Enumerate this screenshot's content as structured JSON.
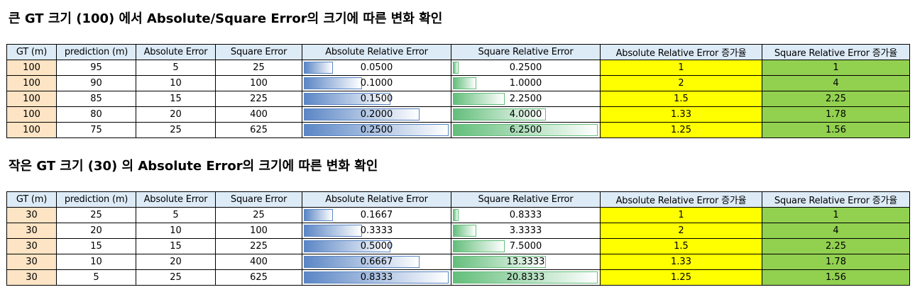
{
  "sections": [
    {
      "title": "큰 GT 크기 (100) 에서 Absolute/Square Error의 크기에 따른 변화 확인",
      "headers": [
        "GT (m)",
        "prediction (m)",
        "Absolute Error",
        "Square Error",
        "Absolute Relative Error",
        "Square Relative Error",
        "Absolute Relative Error 증가율",
        "Square Relative Error 증가율"
      ],
      "rows": [
        {
          "gt": "100",
          "pred": "95",
          "abs": "5",
          "sq": "25",
          "are": "0.0500",
          "sre": "0.2500",
          "are_inc": "1",
          "sre_inc": "1"
        },
        {
          "gt": "100",
          "pred": "90",
          "abs": "10",
          "sq": "100",
          "are": "0.1000",
          "sre": "1.0000",
          "are_inc": "2",
          "sre_inc": "4"
        },
        {
          "gt": "100",
          "pred": "85",
          "abs": "15",
          "sq": "225",
          "are": "0.1500",
          "sre": "2.2500",
          "are_inc": "1.5",
          "sre_inc": "2.25"
        },
        {
          "gt": "100",
          "pred": "80",
          "abs": "20",
          "sq": "400",
          "are": "0.2000",
          "sre": "4.0000",
          "are_inc": "1.33",
          "sre_inc": "1.78"
        },
        {
          "gt": "100",
          "pred": "75",
          "abs": "25",
          "sq": "625",
          "are": "0.2500",
          "sre": "6.2500",
          "are_inc": "1.25",
          "sre_inc": "1.56"
        }
      ],
      "are_bar_fill": [
        0.2,
        0.4,
        0.6,
        0.8,
        1.0
      ],
      "sre_bar_fill": [
        0.04,
        0.16,
        0.36,
        0.64,
        1.0
      ]
    },
    {
      "title": "작은 GT 크기 (30) 의 Absolute Error의 크기에 따른 변화 확인",
      "headers": [
        "GT (m)",
        "prediction (m)",
        "Absolute Error",
        "Square Error",
        "Absolute Relative Error",
        "Square Relative Error",
        "Absolute Relative Error 증가율",
        "Square Relative Error 증가율"
      ],
      "rows": [
        {
          "gt": "30",
          "pred": "25",
          "abs": "5",
          "sq": "25",
          "are": "0.1667",
          "sre": "0.8333",
          "are_inc": "1",
          "sre_inc": "1"
        },
        {
          "gt": "30",
          "pred": "20",
          "abs": "10",
          "sq": "100",
          "are": "0.3333",
          "sre": "3.3333",
          "are_inc": "2",
          "sre_inc": "4"
        },
        {
          "gt": "30",
          "pred": "15",
          "abs": "15",
          "sq": "225",
          "are": "0.5000",
          "sre": "7.5000",
          "are_inc": "1.5",
          "sre_inc": "2.25"
        },
        {
          "gt": "30",
          "pred": "10",
          "abs": "20",
          "sq": "400",
          "are": "0.6667",
          "sre": "13.3333",
          "are_inc": "1.33",
          "sre_inc": "1.78"
        },
        {
          "gt": "30",
          "pred": "5",
          "abs": "25",
          "sq": "625",
          "are": "0.8333",
          "sre": "20.8333",
          "are_inc": "1.25",
          "sre_inc": "1.56"
        }
      ],
      "are_bar_fill": [
        0.2,
        0.4,
        0.6,
        0.8,
        1.0
      ],
      "sre_bar_fill": [
        0.04,
        0.16,
        0.36,
        0.64,
        1.0
      ]
    }
  ],
  "colors": {
    "header_bg": "#ddebf7",
    "gt_bg": "#fce4c4",
    "are_inc_bg": "#ffff00",
    "sre_inc_bg": "#92d050",
    "bar_blue": "#5b86c5",
    "bar_green": "#63be7b"
  }
}
